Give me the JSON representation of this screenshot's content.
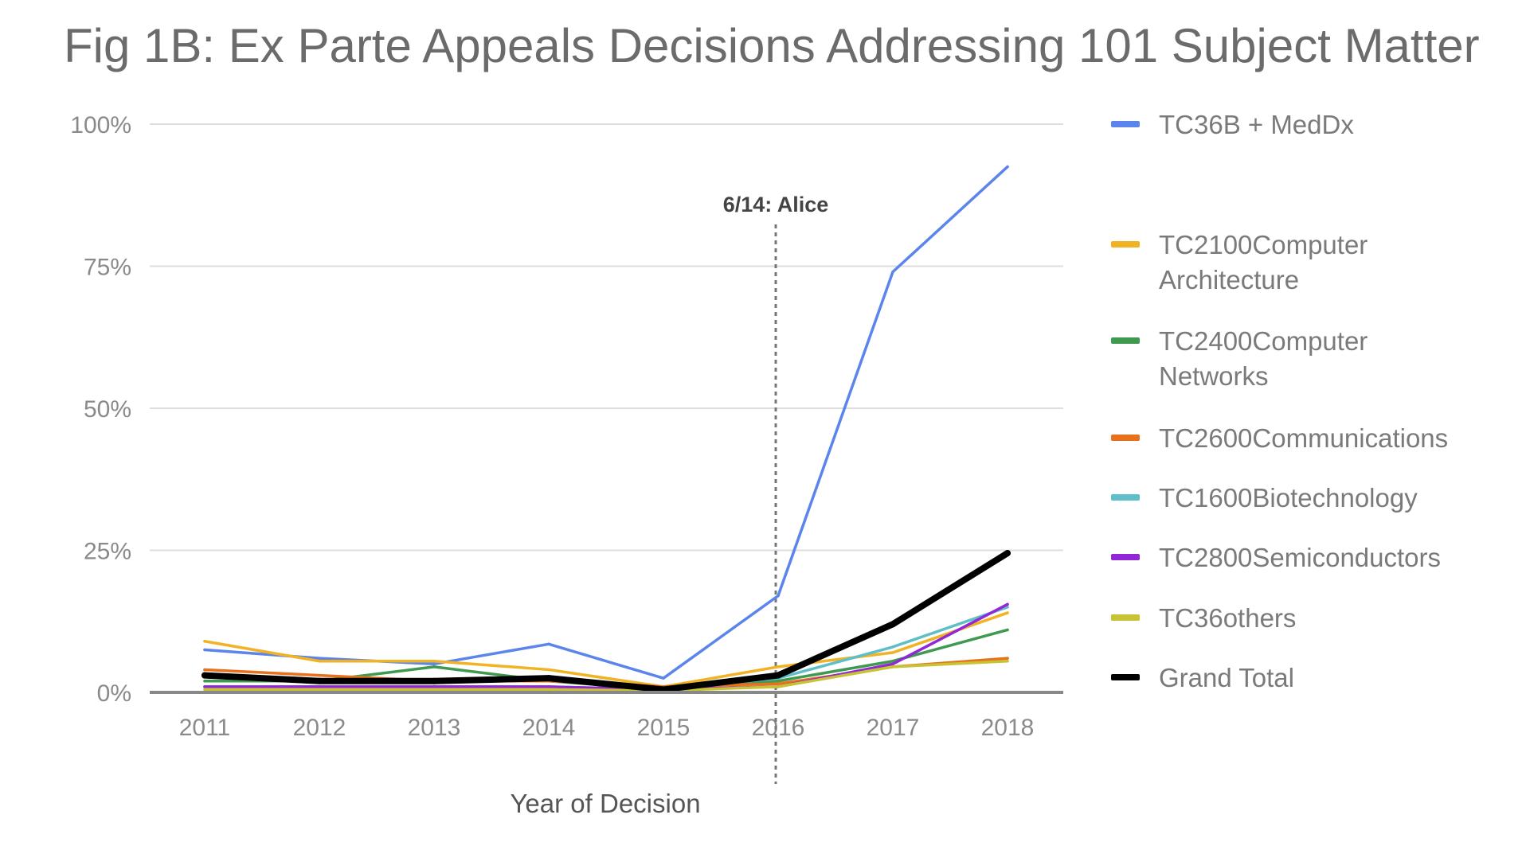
{
  "chart_data": {
    "type": "line",
    "title": "Fig 1B: Ex Parte Appeals Decisions Addressing 101 Subject Matter",
    "xlabel": "Year of Decision",
    "ylabel": "",
    "categories": [
      "2011",
      "2012",
      "2013",
      "2014",
      "2015",
      "2016",
      "2017",
      "2018"
    ],
    "ylim": [
      0,
      100
    ],
    "yticks": [
      0,
      25,
      50,
      75,
      100
    ],
    "ytick_labels": [
      "0%",
      "25%",
      "50%",
      "75%",
      "100%"
    ],
    "grid": true,
    "legend_position": "right",
    "series": [
      {
        "name": "TC36B + MedDx",
        "label_lines": [
          "TC36B + MedDx"
        ],
        "color": "#5b85ec",
        "values": [
          7.5,
          6,
          5,
          8.5,
          2.5,
          17,
          74,
          92.5
        ]
      },
      {
        "name": "TC2100Computer Architecture",
        "label_lines": [
          "TC2100Computer",
          "Architecture"
        ],
        "color": "#f1b324",
        "values": [
          9,
          5.5,
          5.5,
          4,
          1,
          4.5,
          7,
          14
        ]
      },
      {
        "name": "TC2400Computer Networks",
        "label_lines": [
          "TC2400Computer",
          "Networks"
        ],
        "color": "#3f9a50",
        "values": [
          2,
          2,
          4.5,
          2,
          0.5,
          2,
          5.5,
          11
        ]
      },
      {
        "name": "TC2600Communications",
        "label_lines": [
          "TC2600Communications"
        ],
        "color": "#e8711c",
        "values": [
          4,
          3,
          2,
          2,
          1,
          1.5,
          4.5,
          6
        ]
      },
      {
        "name": "TC1600Biotechnology",
        "label_lines": [
          "TC1600Biotechnology"
        ],
        "color": "#5fbfc8",
        "values": [
          1,
          1,
          1,
          1,
          0.5,
          2.5,
          8,
          15
        ]
      },
      {
        "name": "TC2800Semiconductors",
        "label_lines": [
          "TC2800Semiconductors"
        ],
        "color": "#9127d6",
        "values": [
          1,
          1,
          1,
          1,
          0.5,
          1,
          5,
          15.5
        ]
      },
      {
        "name": "TC36others",
        "label_lines": [
          "TC36others"
        ],
        "color": "#c7c332",
        "values": [
          0.5,
          0.5,
          0.5,
          0.5,
          0.3,
          1,
          4.5,
          5.5
        ]
      },
      {
        "name": "Grand Total",
        "label_lines": [
          "Grand Total"
        ],
        "color": "#000000",
        "values": [
          3,
          2,
          2,
          2.5,
          0.5,
          3,
          12,
          24.5
        ]
      }
    ],
    "annotations": [
      {
        "label": "6/14: Alice",
        "x_position": 5.0,
        "style": "dotted-vertical-line"
      }
    ]
  }
}
